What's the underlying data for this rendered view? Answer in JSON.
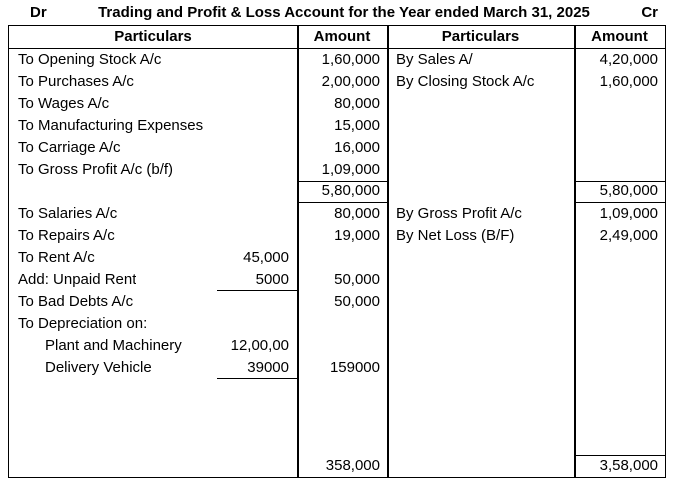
{
  "header": {
    "dr": "Dr",
    "title": "Trading and Profit & Loss Account for the Year ended March 31, 2025",
    "cr": "Cr"
  },
  "table": {
    "columns": [
      "Particulars",
      "Amount",
      "Particulars",
      "Amount"
    ],
    "debit": {
      "rows": [
        {
          "label": "To Opening Stock A/c",
          "amount": "1,60,000"
        },
        {
          "label": "To Purchases A/c",
          "amount": "2,00,000"
        },
        {
          "label": "To Wages A/c",
          "amount": "80,000"
        },
        {
          "label": "To Manufacturing Expenses",
          "amount": "15,000"
        },
        {
          "label": "To Carriage A/c",
          "amount": "16,000"
        },
        {
          "label": "To Gross Profit A/c (b/f)",
          "amount": "1,09,000"
        },
        {
          "label": "",
          "amount": "5,80,000",
          "amount_style": "total"
        },
        {
          "label": "To Salaries A/c",
          "amount": "80,000"
        },
        {
          "label": "To Repairs A/c",
          "amount": "19,000"
        },
        {
          "label": "To Rent A/c",
          "inner": "45,000",
          "amount": ""
        },
        {
          "label": "Add: Unpaid Rent",
          "inner": "5000",
          "inner_underline": true,
          "amount": "50,000"
        },
        {
          "label": "To Bad Debts A/c",
          "amount": "50,000"
        },
        {
          "label": "To Depreciation on:",
          "amount": ""
        },
        {
          "label": "Plant and Machinery",
          "indent": true,
          "inner": "12,00,00",
          "amount": ""
        },
        {
          "label": "Delivery Vehicle",
          "indent": true,
          "inner": "39000",
          "inner_underline": true,
          "amount": "159000"
        }
      ],
      "bottom_row": {
        "label": "",
        "amount": "358,000"
      }
    },
    "credit": {
      "rows": [
        {
          "label": "By Sales A/",
          "amount": "4,20,000"
        },
        {
          "label": "By Closing Stock A/c",
          "amount": "1,60,000"
        },
        {
          "label": "",
          "amount": ""
        },
        {
          "label": "",
          "amount": ""
        },
        {
          "label": "",
          "amount": ""
        },
        {
          "label": "",
          "amount": ""
        },
        {
          "label": "",
          "amount": "5,80,000",
          "amount_style": "total"
        },
        {
          "label": "By Gross Profit A/c",
          "amount": "1,09,000"
        },
        {
          "label": "By Net Loss (B/F)",
          "amount": "2,49,000"
        }
      ],
      "bottom_row": {
        "label": "",
        "amount": "3,58,000",
        "amount_style": "total-top"
      }
    }
  },
  "colors": {
    "background": "#ffffff",
    "text": "#000000",
    "border": "#000000"
  }
}
